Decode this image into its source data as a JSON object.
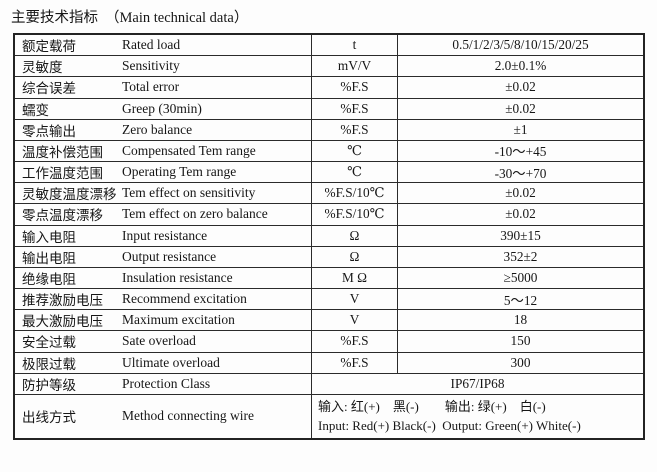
{
  "title": {
    "cn": "主要技术指标",
    "en": "（Main technical data）"
  },
  "table": {
    "rows": [
      {
        "cn": "额定载荷",
        "en": "Rated load",
        "unit": "t",
        "value": "0.5/1/2/3/5/8/10/15/20/25"
      },
      {
        "cn": "灵敏度",
        "en": "Sensitivity",
        "unit": "mV/V",
        "value": "2.0±0.1%"
      },
      {
        "cn": "综合误差",
        "en": "Total error",
        "unit": "%F.S",
        "value": "±0.02"
      },
      {
        "cn": "蠕变",
        "en": "Greep (30min)",
        "unit": "%F.S",
        "value": "±0.02"
      },
      {
        "cn": "零点输出",
        "en": "Zero balance",
        "unit": "%F.S",
        "value": "±1"
      },
      {
        "cn": "温度补偿范围",
        "en": "Compensated Tem range",
        "unit": "℃",
        "value": "-10～+45"
      },
      {
        "cn": "工作温度范围",
        "en": "Operating Tem range",
        "unit": "℃",
        "value": "-30～+70"
      },
      {
        "cn": "灵敏度温度漂移",
        "en": "Tem effect on sensitivity",
        "unit": "%F.S/10℃",
        "value": "±0.02"
      },
      {
        "cn": "零点温度漂移",
        "en": "Tem effect on zero balance",
        "unit": "%F.S/10℃",
        "value": "±0.02"
      },
      {
        "cn": "输入电阻",
        "en": "Input resistance",
        "unit": "Ω",
        "value": "390±15"
      },
      {
        "cn": "输出电阻",
        "en": "Output resistance",
        "unit": "Ω",
        "value": "352±2"
      },
      {
        "cn": "绝缘电阻",
        "en": "Insulation resistance",
        "unit": "M Ω",
        "value": "≥5000"
      },
      {
        "cn": "推荐激励电压",
        "en": "Recommend excitation",
        "unit": "V",
        "value": "5～12"
      },
      {
        "cn": "最大激励电压",
        "en": "Maximum excitation",
        "unit": "V",
        "value": "18"
      },
      {
        "cn": "安全过载",
        "en": "Sate overload",
        "unit": "%F.S",
        "value": "150"
      },
      {
        "cn": "极限过载",
        "en": "Ultimate overload",
        "unit": "%F.S",
        "value": "300"
      }
    ],
    "protection": {
      "cn": "防护等级",
      "en": "Protection Class",
      "value": "IP67/IP68"
    },
    "wiring": {
      "cn": "出线方式",
      "en": "Method connecting wire",
      "line1": "输入: 红(+)　黑(-)　　输出: 绿(+)　白(-)",
      "line2": "Input: Red(+) Black(-)  Output: Green(+) White(-)"
    }
  },
  "colors": {
    "background": "#fdfdfd",
    "border": "#232323",
    "text": "#161616"
  }
}
